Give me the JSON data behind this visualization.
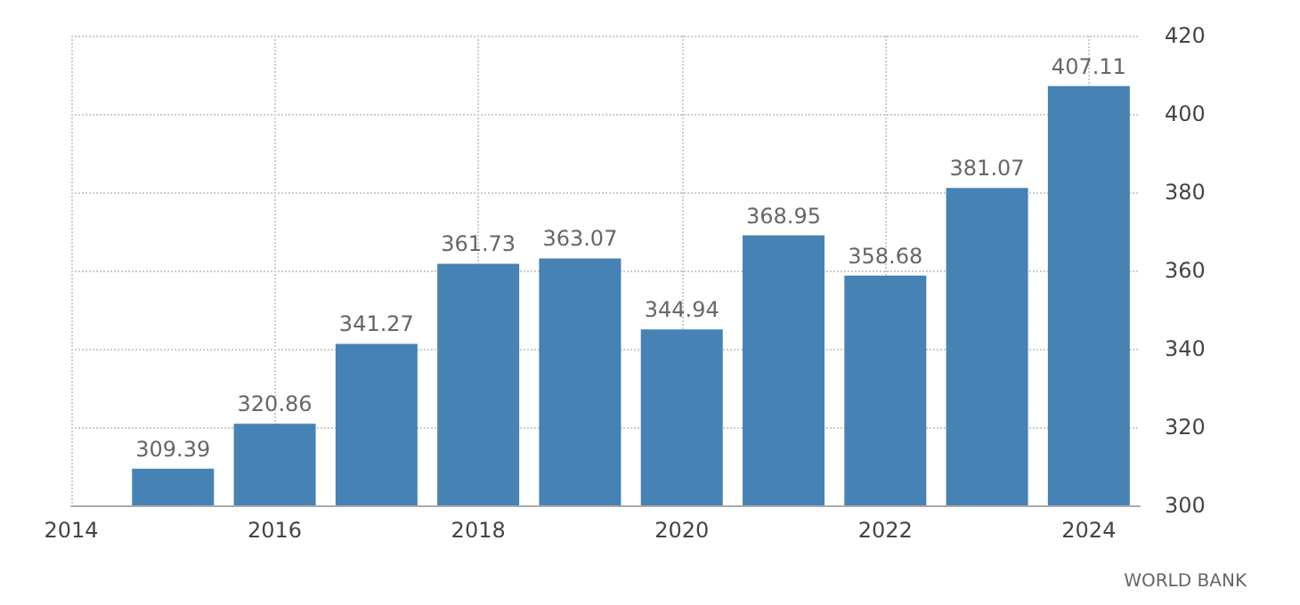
{
  "chart_data": {
    "type": "bar",
    "x": [
      2015,
      2016,
      2017,
      2018,
      2019,
      2020,
      2021,
      2022,
      2023,
      2024
    ],
    "values": [
      309.39,
      320.86,
      341.27,
      361.73,
      363.07,
      344.94,
      368.95,
      358.68,
      381.07,
      407.11
    ],
    "color": "#4682b4",
    "data_labels": true,
    "xlim": [
      2014,
      2024.5
    ],
    "xticks": [
      2014,
      2016,
      2018,
      2020,
      2022,
      2024
    ],
    "ylim": [
      300,
      420
    ],
    "yticks": [
      300,
      320,
      340,
      360,
      380,
      400,
      420
    ],
    "grid": true,
    "annotations": [
      "WORLD BANK"
    ]
  }
}
